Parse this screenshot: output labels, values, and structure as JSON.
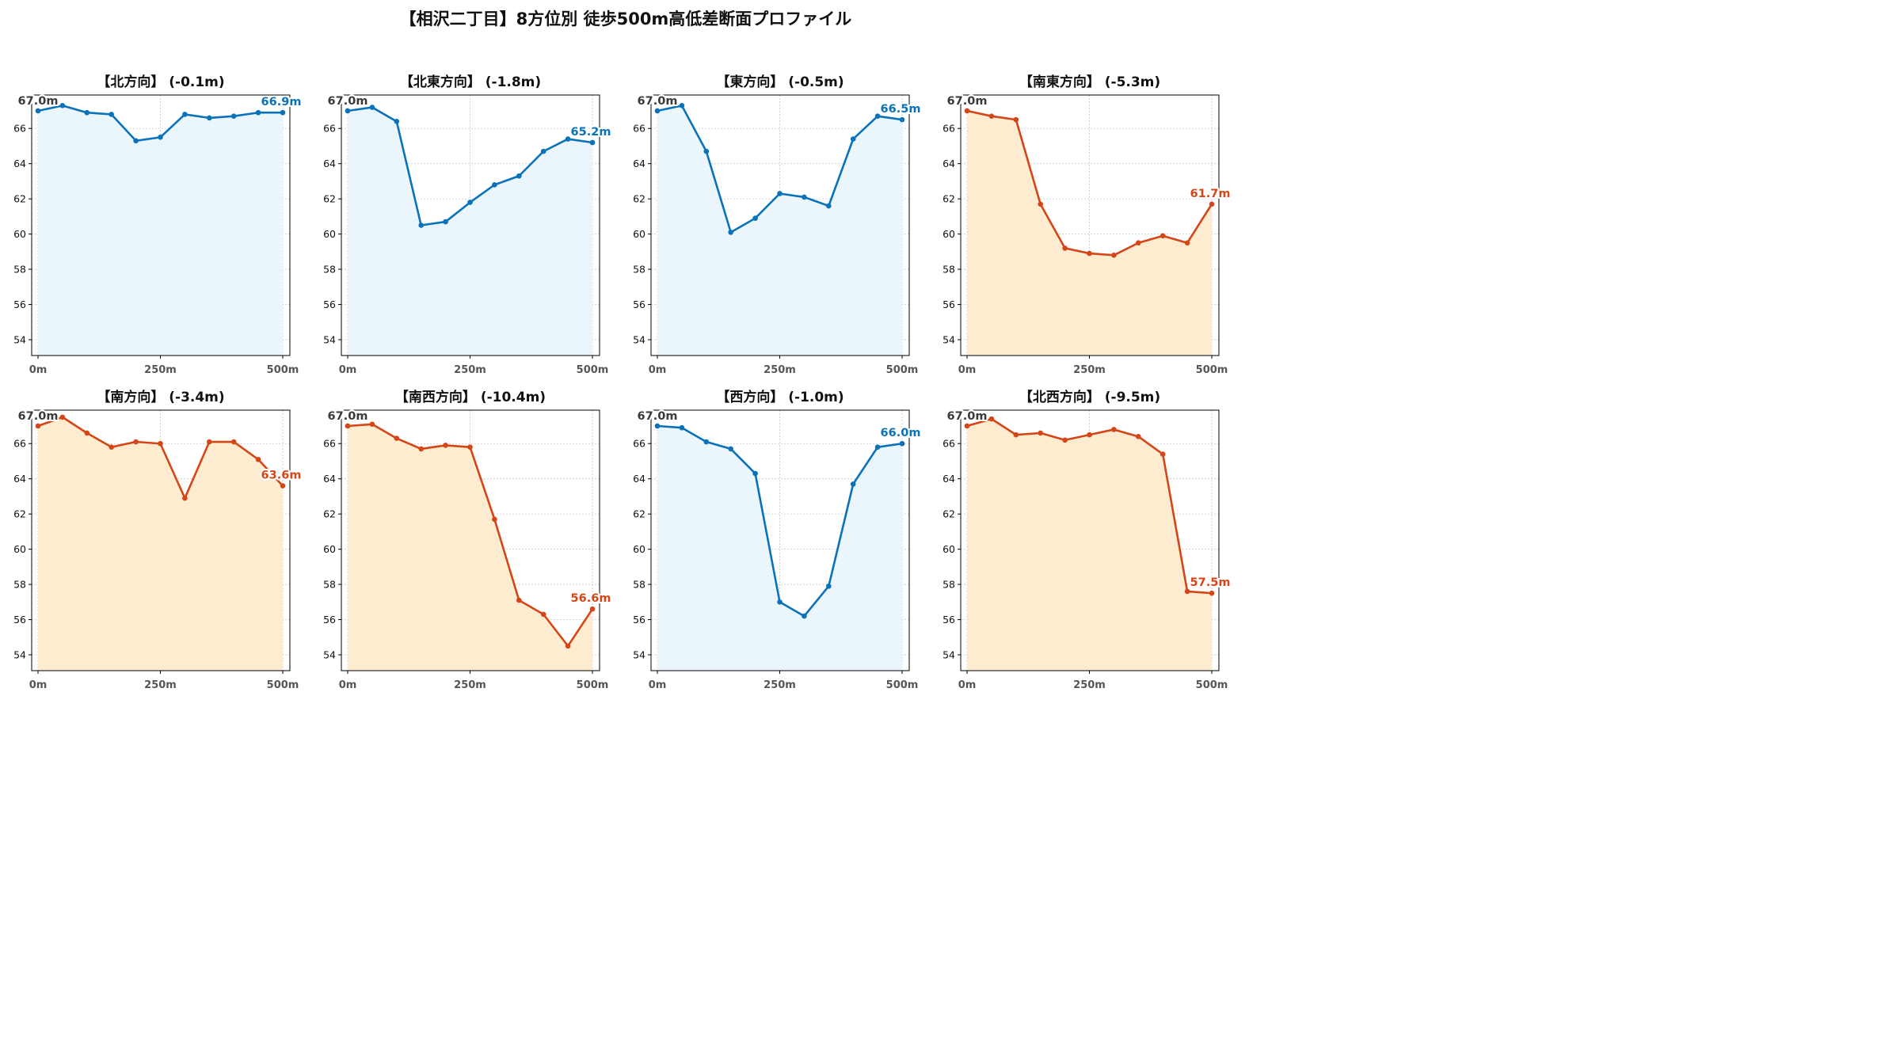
{
  "title": "【相沢二丁目】8方位別 徒歩500m高低差断面プロファイル",
  "colors": {
    "up": "#0a72b8",
    "up_fill": "#eaf6fb",
    "down": "#d44617",
    "down_fill": "#fdeccf",
    "start_label": "#3a3a3a"
  },
  "chart_data": [
    {
      "type": "area",
      "title": "【北方向】 (-0.1m)",
      "x": [
        0,
        50,
        100,
        150,
        200,
        250,
        300,
        350,
        400,
        450,
        500
      ],
      "values": [
        67.0,
        67.3,
        66.9,
        66.8,
        65.3,
        65.5,
        66.8,
        66.6,
        66.7,
        66.9,
        66.9
      ],
      "start_label": "67.0m",
      "end_label": "66.9m",
      "trend": "up",
      "xticks": [
        "0m",
        "250m",
        "500m"
      ],
      "yticks": [
        54,
        56,
        58,
        60,
        62,
        64,
        66
      ],
      "ylim": [
        53.1,
        67.9
      ],
      "grid": true
    },
    {
      "type": "area",
      "title": "【北東方向】 (-1.8m)",
      "x": [
        0,
        50,
        100,
        150,
        200,
        250,
        300,
        350,
        400,
        450,
        500
      ],
      "values": [
        67.0,
        67.2,
        66.4,
        60.5,
        60.7,
        61.8,
        62.8,
        63.3,
        64.7,
        65.4,
        65.2
      ],
      "start_label": "67.0m",
      "end_label": "65.2m",
      "trend": "up",
      "xticks": [
        "0m",
        "250m",
        "500m"
      ],
      "yticks": [
        54,
        56,
        58,
        60,
        62,
        64,
        66
      ],
      "ylim": [
        53.1,
        67.9
      ],
      "grid": true
    },
    {
      "type": "area",
      "title": "【東方向】 (-0.5m)",
      "x": [
        0,
        50,
        100,
        150,
        200,
        250,
        300,
        350,
        400,
        450,
        500
      ],
      "values": [
        67.0,
        67.3,
        64.7,
        60.1,
        60.9,
        62.3,
        62.1,
        61.6,
        65.4,
        66.7,
        66.5
      ],
      "start_label": "67.0m",
      "end_label": "66.5m",
      "trend": "up",
      "xticks": [
        "0m",
        "250m",
        "500m"
      ],
      "yticks": [
        54,
        56,
        58,
        60,
        62,
        64,
        66
      ],
      "ylim": [
        53.1,
        67.9
      ],
      "grid": true
    },
    {
      "type": "area",
      "title": "【南東方向】 (-5.3m)",
      "x": [
        0,
        50,
        100,
        150,
        200,
        250,
        300,
        350,
        400,
        450,
        500
      ],
      "values": [
        67.0,
        66.7,
        66.5,
        61.7,
        59.2,
        58.9,
        58.8,
        59.5,
        59.9,
        59.5,
        61.7
      ],
      "start_label": "67.0m",
      "end_label": "61.7m",
      "trend": "down",
      "xticks": [
        "0m",
        "250m",
        "500m"
      ],
      "yticks": [
        54,
        56,
        58,
        60,
        62,
        64,
        66
      ],
      "ylim": [
        53.1,
        67.9
      ],
      "grid": true
    },
    {
      "type": "area",
      "title": "【南方向】 (-3.4m)",
      "x": [
        0,
        50,
        100,
        150,
        200,
        250,
        300,
        350,
        400,
        450,
        500
      ],
      "values": [
        67.0,
        67.5,
        66.6,
        65.8,
        66.1,
        66.0,
        62.9,
        66.1,
        66.1,
        65.1,
        63.6
      ],
      "start_label": "67.0m",
      "end_label": "63.6m",
      "trend": "down",
      "xticks": [
        "0m",
        "250m",
        "500m"
      ],
      "yticks": [
        54,
        56,
        58,
        60,
        62,
        64,
        66
      ],
      "ylim": [
        53.1,
        67.9
      ],
      "grid": true
    },
    {
      "type": "area",
      "title": "【南西方向】 (-10.4m)",
      "x": [
        0,
        50,
        100,
        150,
        200,
        250,
        300,
        350,
        400,
        450,
        500
      ],
      "values": [
        67.0,
        67.1,
        66.3,
        65.7,
        65.9,
        65.8,
        61.7,
        57.1,
        56.3,
        54.5,
        56.6
      ],
      "start_label": "67.0m",
      "end_label": "56.6m",
      "trend": "down",
      "xticks": [
        "0m",
        "250m",
        "500m"
      ],
      "yticks": [
        54,
        56,
        58,
        60,
        62,
        64,
        66
      ],
      "ylim": [
        53.1,
        67.9
      ],
      "grid": true
    },
    {
      "type": "area",
      "title": "【西方向】 (-1.0m)",
      "x": [
        0,
        50,
        100,
        150,
        200,
        250,
        300,
        350,
        400,
        450,
        500
      ],
      "values": [
        67.0,
        66.9,
        66.1,
        65.7,
        64.3,
        57.0,
        56.2,
        57.9,
        63.7,
        65.8,
        66.0
      ],
      "start_label": "67.0m",
      "end_label": "66.0m",
      "trend": "up",
      "xticks": [
        "0m",
        "250m",
        "500m"
      ],
      "yticks": [
        54,
        56,
        58,
        60,
        62,
        64,
        66
      ],
      "ylim": [
        53.1,
        67.9
      ],
      "grid": true
    },
    {
      "type": "area",
      "title": "【北西方向】 (-9.5m)",
      "x": [
        0,
        50,
        100,
        150,
        200,
        250,
        300,
        350,
        400,
        450,
        500
      ],
      "values": [
        67.0,
        67.4,
        66.5,
        66.6,
        66.2,
        66.5,
        66.8,
        66.4,
        65.4,
        57.6,
        57.5
      ],
      "start_label": "67.0m",
      "end_label": "57.5m",
      "trend": "down",
      "xticks": [
        "0m",
        "250m",
        "500m"
      ],
      "yticks": [
        54,
        56,
        58,
        60,
        62,
        64,
        66
      ],
      "ylim": [
        53.1,
        67.9
      ],
      "grid": true
    }
  ]
}
